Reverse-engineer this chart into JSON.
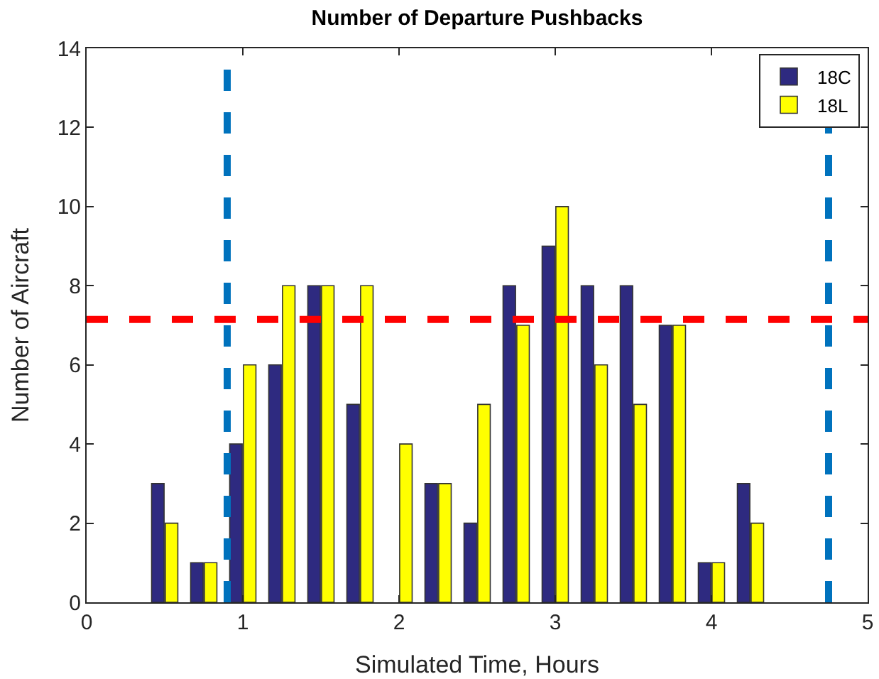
{
  "chart_data": {
    "type": "bar",
    "title": "Number of Departure Pushbacks",
    "xlabel": "Simulated Time, Hours",
    "ylabel": "Number of Aircraft",
    "x": [
      0.5,
      0.75,
      1.0,
      1.25,
      1.5,
      1.75,
      2.0,
      2.25,
      2.5,
      2.75,
      3.0,
      3.25,
      3.5,
      3.75,
      4.0,
      4.25
    ],
    "series": [
      {
        "name": "18C",
        "color": "#2e2a80",
        "values": [
          3,
          1,
          4,
          6,
          8,
          5,
          0,
          3,
          2,
          8,
          9,
          8,
          8,
          7,
          1,
          3
        ]
      },
      {
        "name": "18L",
        "color": "#ffff00",
        "values": [
          2,
          1,
          6,
          8,
          8,
          8,
          4,
          3,
          5,
          7,
          10,
          6,
          5,
          7,
          1,
          2
        ]
      }
    ],
    "xlim": [
      0,
      5
    ],
    "xticks": [
      0,
      1,
      2,
      3,
      4,
      5
    ],
    "ylim": [
      0,
      14
    ],
    "yticks": [
      0,
      2,
      4,
      6,
      8,
      10,
      12,
      14
    ],
    "ref_lines": [
      {
        "axis": "y",
        "value": 7.15,
        "color": "#ff0000",
        "line_style": "dashed"
      },
      {
        "axis": "x",
        "value": 0.9,
        "color": "#0072bd",
        "line_style": "dashed"
      },
      {
        "axis": "x",
        "value": 4.75,
        "color": "#0072bd",
        "line_style": "dashed"
      }
    ],
    "legend": "top right",
    "grid": false
  }
}
